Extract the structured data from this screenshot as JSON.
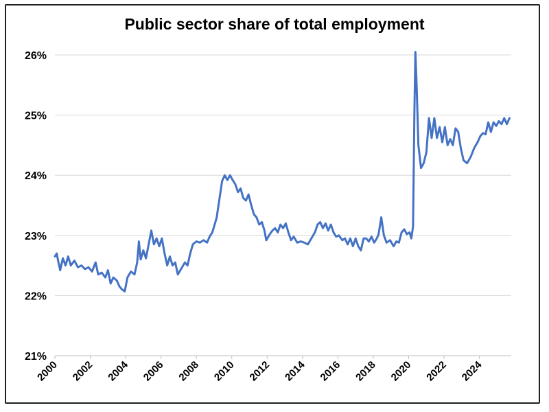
{
  "chart_data": {
    "type": "line",
    "title": "Public sector share of total employment",
    "xlabel": "",
    "ylabel": "",
    "xlim": [
      2000,
      2025.8
    ],
    "ylim": [
      21,
      26
    ],
    "grid": true,
    "legend": "none",
    "line_color": "#4472C4",
    "grid_color": "#d9d9d9",
    "y_ticks": [
      {
        "value": 21,
        "label": "21%"
      },
      {
        "value": 22,
        "label": "22%"
      },
      {
        "value": 23,
        "label": "23%"
      },
      {
        "value": 24,
        "label": "24%"
      },
      {
        "value": 25,
        "label": "25%"
      },
      {
        "value": 26,
        "label": "26%"
      }
    ],
    "x_ticks": [
      {
        "value": 2000,
        "label": "2000"
      },
      {
        "value": 2002,
        "label": "2002"
      },
      {
        "value": 2004,
        "label": "2004"
      },
      {
        "value": 2006,
        "label": "2006"
      },
      {
        "value": 2008,
        "label": "2008"
      },
      {
        "value": 2010,
        "label": "2010"
      },
      {
        "value": 2012,
        "label": "2012"
      },
      {
        "value": 2014,
        "label": "2014"
      },
      {
        "value": 2016,
        "label": "2016"
      },
      {
        "value": 2018,
        "label": "2018"
      },
      {
        "value": 2020,
        "label": "2020"
      },
      {
        "value": 2022,
        "label": "2022"
      },
      {
        "value": 2024,
        "label": "2024"
      }
    ],
    "series": [
      {
        "name": "Public sector share of total employment",
        "points": [
          [
            2000.0,
            22.65
          ],
          [
            2000.1,
            22.7
          ],
          [
            2000.2,
            22.55
          ],
          [
            2000.3,
            22.42
          ],
          [
            2000.45,
            22.62
          ],
          [
            2000.6,
            22.5
          ],
          [
            2000.75,
            22.65
          ],
          [
            2000.9,
            22.5
          ],
          [
            2001.1,
            22.58
          ],
          [
            2001.3,
            22.47
          ],
          [
            2001.5,
            22.5
          ],
          [
            2001.7,
            22.44
          ],
          [
            2001.9,
            22.47
          ],
          [
            2002.1,
            22.4
          ],
          [
            2002.3,
            22.55
          ],
          [
            2002.45,
            22.35
          ],
          [
            2002.65,
            22.38
          ],
          [
            2002.85,
            22.3
          ],
          [
            2003.0,
            22.42
          ],
          [
            2003.15,
            22.2
          ],
          [
            2003.3,
            22.3
          ],
          [
            2003.5,
            22.25
          ],
          [
            2003.65,
            22.15
          ],
          [
            2003.8,
            22.1
          ],
          [
            2003.95,
            22.07
          ],
          [
            2004.1,
            22.3
          ],
          [
            2004.3,
            22.4
          ],
          [
            2004.5,
            22.35
          ],
          [
            2004.65,
            22.55
          ],
          [
            2004.75,
            22.9
          ],
          [
            2004.85,
            22.6
          ],
          [
            2005.0,
            22.75
          ],
          [
            2005.15,
            22.62
          ],
          [
            2005.3,
            22.85
          ],
          [
            2005.45,
            23.08
          ],
          [
            2005.6,
            22.85
          ],
          [
            2005.75,
            22.95
          ],
          [
            2005.9,
            22.82
          ],
          [
            2006.05,
            22.95
          ],
          [
            2006.2,
            22.7
          ],
          [
            2006.35,
            22.5
          ],
          [
            2006.5,
            22.65
          ],
          [
            2006.65,
            22.5
          ],
          [
            2006.8,
            22.55
          ],
          [
            2006.95,
            22.35
          ],
          [
            2007.15,
            22.45
          ],
          [
            2007.35,
            22.55
          ],
          [
            2007.5,
            22.5
          ],
          [
            2007.65,
            22.7
          ],
          [
            2007.8,
            22.85
          ],
          [
            2008.0,
            22.9
          ],
          [
            2008.2,
            22.88
          ],
          [
            2008.4,
            22.92
          ],
          [
            2008.6,
            22.88
          ],
          [
            2008.75,
            22.98
          ],
          [
            2008.9,
            23.05
          ],
          [
            2009.05,
            23.2
          ],
          [
            2009.15,
            23.3
          ],
          [
            2009.3,
            23.6
          ],
          [
            2009.45,
            23.9
          ],
          [
            2009.6,
            24.0
          ],
          [
            2009.75,
            23.92
          ],
          [
            2009.9,
            24.0
          ],
          [
            2010.05,
            23.92
          ],
          [
            2010.2,
            23.85
          ],
          [
            2010.35,
            23.72
          ],
          [
            2010.5,
            23.78
          ],
          [
            2010.65,
            23.62
          ],
          [
            2010.8,
            23.58
          ],
          [
            2010.95,
            23.68
          ],
          [
            2011.1,
            23.5
          ],
          [
            2011.25,
            23.35
          ],
          [
            2011.4,
            23.3
          ],
          [
            2011.55,
            23.18
          ],
          [
            2011.7,
            23.22
          ],
          [
            2011.85,
            23.08
          ],
          [
            2011.95,
            22.92
          ],
          [
            2012.15,
            23.02
          ],
          [
            2012.3,
            23.08
          ],
          [
            2012.45,
            23.12
          ],
          [
            2012.6,
            23.05
          ],
          [
            2012.75,
            23.18
          ],
          [
            2012.9,
            23.12
          ],
          [
            2013.05,
            23.2
          ],
          [
            2013.2,
            23.05
          ],
          [
            2013.35,
            22.92
          ],
          [
            2013.5,
            22.98
          ],
          [
            2013.7,
            22.88
          ],
          [
            2013.9,
            22.9
          ],
          [
            2014.1,
            22.88
          ],
          [
            2014.3,
            22.85
          ],
          [
            2014.5,
            22.95
          ],
          [
            2014.7,
            23.05
          ],
          [
            2014.85,
            23.18
          ],
          [
            2015.0,
            23.22
          ],
          [
            2015.15,
            23.12
          ],
          [
            2015.3,
            23.2
          ],
          [
            2015.45,
            23.08
          ],
          [
            2015.6,
            23.18
          ],
          [
            2015.75,
            23.05
          ],
          [
            2015.9,
            22.98
          ],
          [
            2016.05,
            23.0
          ],
          [
            2016.25,
            22.92
          ],
          [
            2016.4,
            22.95
          ],
          [
            2016.55,
            22.85
          ],
          [
            2016.7,
            22.95
          ],
          [
            2016.85,
            22.82
          ],
          [
            2017.0,
            22.95
          ],
          [
            2017.15,
            22.82
          ],
          [
            2017.3,
            22.75
          ],
          [
            2017.45,
            22.95
          ],
          [
            2017.6,
            22.95
          ],
          [
            2017.75,
            22.9
          ],
          [
            2017.9,
            22.98
          ],
          [
            2018.05,
            22.88
          ],
          [
            2018.2,
            22.95
          ],
          [
            2018.3,
            23.02
          ],
          [
            2018.45,
            23.3
          ],
          [
            2018.6,
            23.0
          ],
          [
            2018.75,
            22.88
          ],
          [
            2018.95,
            22.92
          ],
          [
            2019.15,
            22.82
          ],
          [
            2019.3,
            22.9
          ],
          [
            2019.45,
            22.88
          ],
          [
            2019.6,
            23.05
          ],
          [
            2019.75,
            23.1
          ],
          [
            2019.9,
            23.02
          ],
          [
            2020.05,
            23.05
          ],
          [
            2020.15,
            22.95
          ],
          [
            2020.25,
            23.15
          ],
          [
            2020.32,
            25.0
          ],
          [
            2020.38,
            26.05
          ],
          [
            2020.45,
            25.5
          ],
          [
            2020.55,
            24.5
          ],
          [
            2020.7,
            24.12
          ],
          [
            2020.85,
            24.2
          ],
          [
            2021.0,
            24.38
          ],
          [
            2021.15,
            24.95
          ],
          [
            2021.3,
            24.62
          ],
          [
            2021.45,
            24.95
          ],
          [
            2021.6,
            24.62
          ],
          [
            2021.75,
            24.8
          ],
          [
            2021.9,
            24.55
          ],
          [
            2022.05,
            24.8
          ],
          [
            2022.2,
            24.5
          ],
          [
            2022.35,
            24.6
          ],
          [
            2022.5,
            24.5
          ],
          [
            2022.65,
            24.78
          ],
          [
            2022.8,
            24.72
          ],
          [
            2022.95,
            24.45
          ],
          [
            2023.1,
            24.25
          ],
          [
            2023.3,
            24.2
          ],
          [
            2023.5,
            24.3
          ],
          [
            2023.7,
            24.45
          ],
          [
            2023.9,
            24.55
          ],
          [
            2024.05,
            24.65
          ],
          [
            2024.2,
            24.7
          ],
          [
            2024.35,
            24.68
          ],
          [
            2024.5,
            24.88
          ],
          [
            2024.65,
            24.72
          ],
          [
            2024.8,
            24.88
          ],
          [
            2024.95,
            24.82
          ],
          [
            2025.1,
            24.9
          ],
          [
            2025.25,
            24.85
          ],
          [
            2025.4,
            24.95
          ],
          [
            2025.55,
            24.85
          ],
          [
            2025.7,
            24.95
          ]
        ]
      }
    ]
  }
}
